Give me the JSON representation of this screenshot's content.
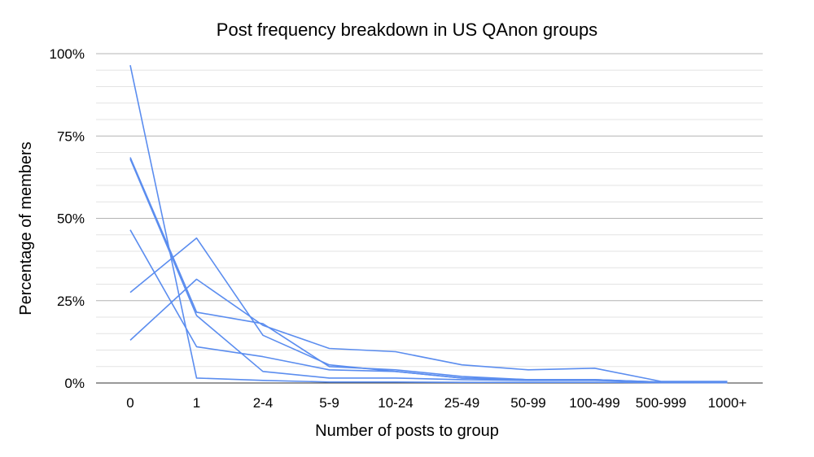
{
  "chart_data": {
    "type": "line",
    "title": "Post frequency breakdown in US QAnon groups",
    "xlabel": "Number of posts to group",
    "ylabel": "Percentage of members",
    "categories": [
      "0",
      "1",
      "2-4",
      "5-9",
      "10-24",
      "25-49",
      "50-99",
      "100-499",
      "500-999",
      "1000+"
    ],
    "ylim": [
      0,
      100
    ],
    "yticks": [
      "0%",
      "25%",
      "50%",
      "75%",
      "100%"
    ],
    "grid": true,
    "legend": "none",
    "line_color": "#5b8def",
    "series": [
      {
        "values": [
          96.5,
          1.5,
          0.8,
          0.3,
          0.3,
          0.2,
          0.2,
          0.2,
          0.1,
          0.1
        ]
      },
      {
        "values": [
          68.5,
          21.5,
          18.0,
          5.0,
          4.0,
          2.0,
          1.0,
          1.0,
          0.3,
          0.2
        ]
      },
      {
        "values": [
          68.0,
          20.5,
          3.5,
          1.5,
          1.5,
          1.0,
          0.8,
          0.8,
          0.2,
          0.2
        ]
      },
      {
        "values": [
          46.5,
          11.0,
          8.0,
          4.0,
          3.5,
          1.5,
          1.0,
          1.0,
          0.3,
          0.2
        ]
      },
      {
        "values": [
          27.5,
          44.0,
          14.5,
          5.5,
          3.5,
          1.5,
          1.0,
          1.0,
          0.2,
          0.1
        ]
      },
      {
        "values": [
          13.0,
          31.5,
          17.5,
          10.5,
          9.5,
          5.5,
          4.0,
          4.5,
          0.5,
          0.5
        ]
      }
    ]
  }
}
